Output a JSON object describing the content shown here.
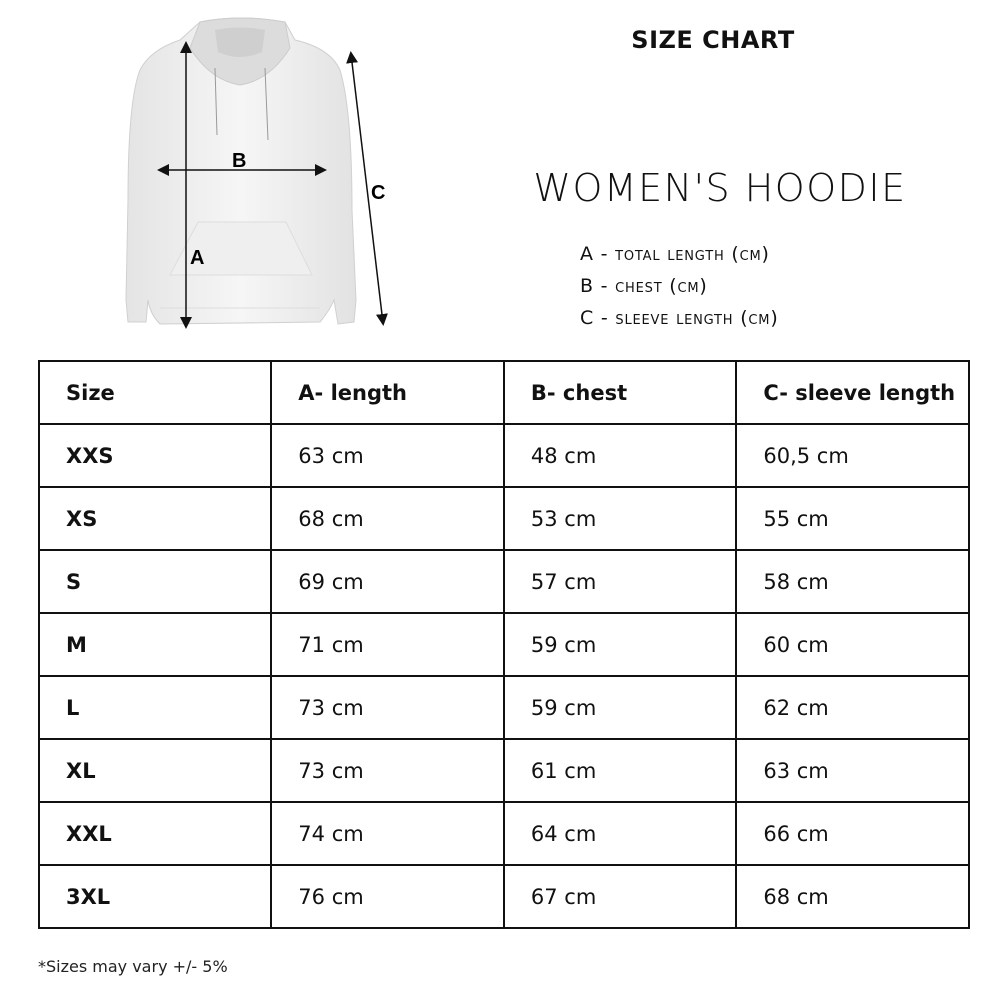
{
  "header": {
    "title": "SIZE CHART",
    "product": "WOMEN'S HOODIE"
  },
  "diagram": {
    "labels": {
      "a": "A",
      "b": "B",
      "c": "C"
    }
  },
  "legend": [
    "A - total length (cm)",
    "B - chest (cm)",
    "C - sleeve length (cm)"
  ],
  "table": {
    "headers": [
      "Size",
      "A- length",
      "B- chest",
      "C- sleeve length"
    ],
    "rows": [
      [
        "XXS",
        "63 cm",
        "48 cm",
        "60,5 cm"
      ],
      [
        "XS",
        "68 cm",
        "53 cm",
        "55 cm"
      ],
      [
        "S",
        "69 cm",
        "57 cm",
        "58 cm"
      ],
      [
        "M",
        "71 cm",
        "59 cm",
        "60 cm"
      ],
      [
        "L",
        "73 cm",
        "59 cm",
        "62 cm"
      ],
      [
        "XL",
        "73 cm",
        "61 cm",
        "63 cm"
      ],
      [
        "XXL",
        "74 cm",
        "64 cm",
        "66 cm"
      ],
      [
        "3XL",
        "76 cm",
        "67 cm",
        "68 cm"
      ]
    ]
  },
  "footnote": "*Sizes may vary +/- 5%"
}
